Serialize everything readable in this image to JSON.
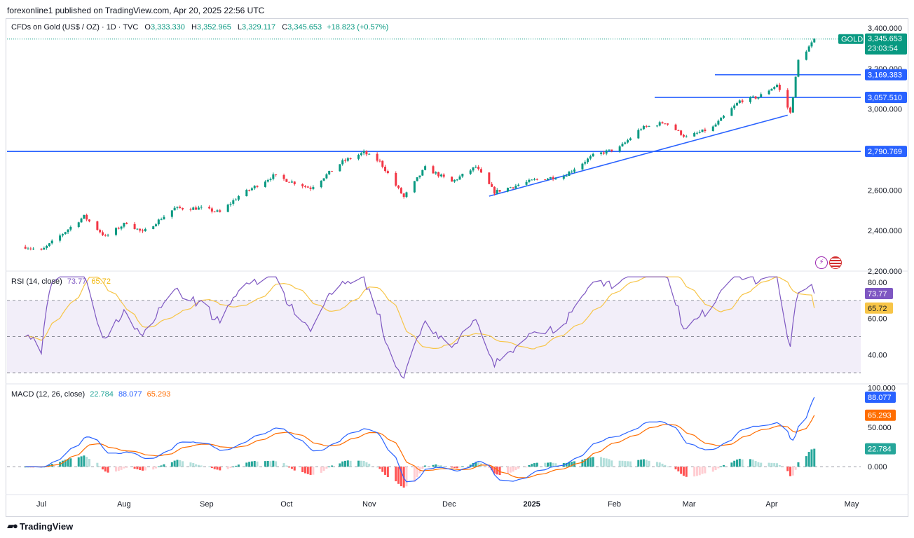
{
  "header": {
    "publisher": "forexonline1 published on TradingView.com, Apr 20, 2025 22:56 UTC"
  },
  "instrument": {
    "title": "CFDs on Gold (US$ / OZ) · 1D · TVC",
    "open_label": "O",
    "open": "3,333.330",
    "high_label": "H",
    "high": "3,352.965",
    "low_label": "L",
    "low": "3,329.117",
    "close_label": "C",
    "close": "3,345.653",
    "change": "+18.823 (+0.57%)"
  },
  "price_badge": {
    "symbol": "GOLD",
    "price": "3,345.653",
    "countdown": "23:03:54"
  },
  "rsi": {
    "label": "RSI (14, close)",
    "rsi_value": "73.77",
    "ma_value": "65.72"
  },
  "macd": {
    "label": "MACD (12, 26, close)",
    "hist_value": "22.784",
    "macd_value": "88.077",
    "signal_value": "65.293"
  },
  "footer": {
    "brand": "TradingView"
  },
  "colors": {
    "up": "#089981",
    "down": "#f23645",
    "rsi": "#7e57c2",
    "rsi_ma": "#f7c548",
    "macd": "#2962ff",
    "signal": "#ff6d00",
    "level": "#2962ff",
    "hist_up": "#26a69a",
    "hist_up_light": "#b2dfdb",
    "hist_down": "#ff5252",
    "hist_down_light": "#ffcdd2"
  },
  "icons": [
    "lightning-icon",
    "us-flag-icon"
  ],
  "chart_data": [
    {
      "type": "candlestick",
      "title": "CFDs on Gold (US$ / OZ) · 1D · TVC",
      "x_ticks": [
        "Jul",
        "Aug",
        "Sep",
        "Oct",
        "Nov",
        "Dec",
        "2025",
        "Feb",
        "Mar",
        "Apr",
        "May"
      ],
      "y_ticks": [
        "3,400.000",
        "3,200.000",
        "3,000.000",
        "2,600.000",
        "2,400.000",
        "2,200.000"
      ],
      "ylim": [
        2200,
        3400
      ],
      "horizontal_levels": [
        {
          "label": "3,169.383",
          "value": 3169.383
        },
        {
          "label": "3,057.510",
          "value": 3057.51
        },
        {
          "label": "2,790.769",
          "value": 2790.769
        }
      ],
      "trendline": {
        "from": [
          "2024-12-16",
          2570
        ],
        "to": [
          "2025-04-07",
          2970
        ]
      },
      "series_anchors": [
        {
          "date": "2024-06-25",
          "value": 2320
        },
        {
          "date": "2024-07-01",
          "value": 2300
        },
        {
          "date": "2024-07-17",
          "value": 2470
        },
        {
          "date": "2024-07-25",
          "value": 2370
        },
        {
          "date": "2024-08-02",
          "value": 2440
        },
        {
          "date": "2024-08-08",
          "value": 2390
        },
        {
          "date": "2024-08-20",
          "value": 2510
        },
        {
          "date": "2024-08-30",
          "value": 2510
        },
        {
          "date": "2024-09-06",
          "value": 2490
        },
        {
          "date": "2024-09-13",
          "value": 2570
        },
        {
          "date": "2024-09-26",
          "value": 2670
        },
        {
          "date": "2024-10-10",
          "value": 2610
        },
        {
          "date": "2024-10-22",
          "value": 2740
        },
        {
          "date": "2024-10-30",
          "value": 2785
        },
        {
          "date": "2024-11-05",
          "value": 2740
        },
        {
          "date": "2024-11-14",
          "value": 2565
        },
        {
          "date": "2024-11-22",
          "value": 2710
        },
        {
          "date": "2024-12-02",
          "value": 2640
        },
        {
          "date": "2024-12-11",
          "value": 2715
        },
        {
          "date": "2024-12-18",
          "value": 2590
        },
        {
          "date": "2025-01-02",
          "value": 2650
        },
        {
          "date": "2025-01-13",
          "value": 2670
        },
        {
          "date": "2025-01-24",
          "value": 2770
        },
        {
          "date": "2025-02-03",
          "value": 2810
        },
        {
          "date": "2025-02-11",
          "value": 2905
        },
        {
          "date": "2025-02-20",
          "value": 2935
        },
        {
          "date": "2025-02-28",
          "value": 2860
        },
        {
          "date": "2025-03-10",
          "value": 2910
        },
        {
          "date": "2025-03-20",
          "value": 3040
        },
        {
          "date": "2025-03-27",
          "value": 3060
        },
        {
          "date": "2025-04-03",
          "value": 3120
        },
        {
          "date": "2025-04-08",
          "value": 2980
        },
        {
          "date": "2025-04-11",
          "value": 3240
        },
        {
          "date": "2025-04-17",
          "value": 3340
        }
      ]
    },
    {
      "type": "line",
      "title": "RSI (14, close)",
      "y_ticks": [
        "80.00",
        "60.00",
        "40.00"
      ],
      "ylim": [
        25,
        85
      ],
      "bands": [
        70,
        50,
        30
      ],
      "series": [
        {
          "name": "RSI",
          "value": 73.77
        },
        {
          "name": "RSI MA",
          "value": 65.72
        }
      ]
    },
    {
      "type": "bar+line",
      "title": "MACD (12, 26, close)",
      "y_ticks": [
        "100.000",
        "50.000",
        "0.000"
      ],
      "ylim": [
        -30,
        105
      ],
      "series": [
        {
          "name": "Histogram",
          "value": 22.784
        },
        {
          "name": "MACD",
          "value": 88.077
        },
        {
          "name": "Signal",
          "value": 65.293
        }
      ]
    }
  ]
}
